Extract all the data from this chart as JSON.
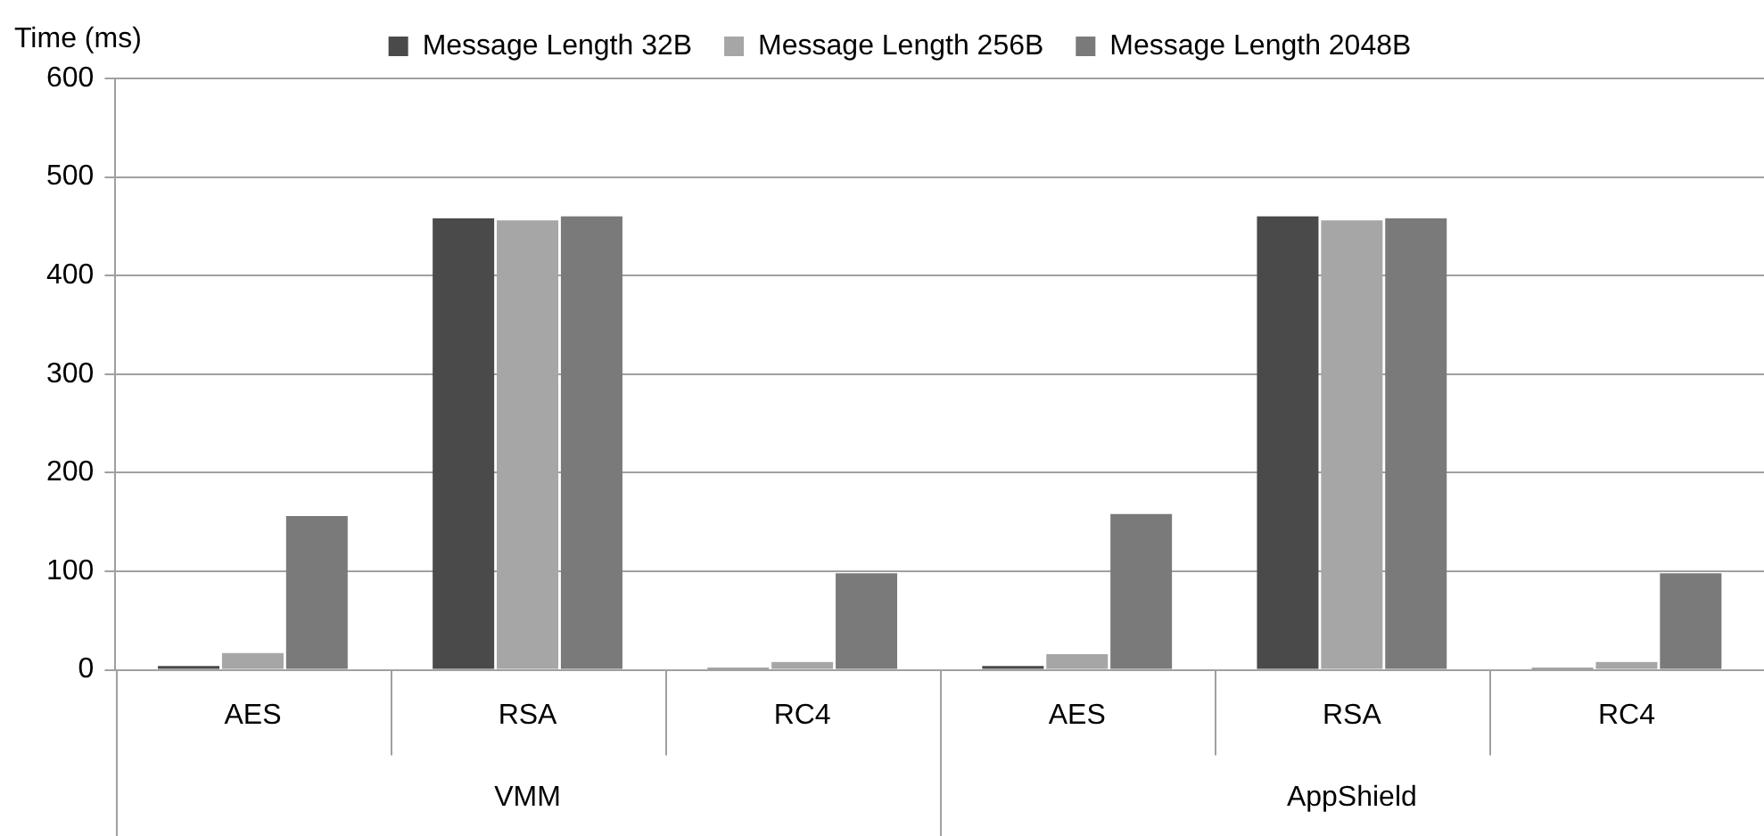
{
  "chart_data": {
    "type": "bar",
    "ylabel": "Time (ms)",
    "categories": [
      "AES",
      "RSA",
      "RC4",
      "AES",
      "RSA",
      "RC4"
    ],
    "annotations": [
      "VMM",
      "AppShield"
    ],
    "series": [
      {
        "name": "Message Length 32B",
        "color": "#4a4a4a",
        "values": [
          4,
          458,
          2,
          4,
          460,
          2
        ]
      },
      {
        "name": "Message Length 256B",
        "color": "#a6a6a6",
        "values": [
          17,
          456,
          8,
          16,
          456,
          8
        ]
      },
      {
        "name": "Message Length 2048B",
        "color": "#7a7a7a",
        "values": [
          156,
          460,
          98,
          158,
          458,
          98
        ]
      }
    ],
    "ylim": [
      0,
      600
    ],
    "yticks": [
      0,
      100,
      200,
      300,
      400,
      500,
      600
    ],
    "grid": "y",
    "legend": "top"
  }
}
